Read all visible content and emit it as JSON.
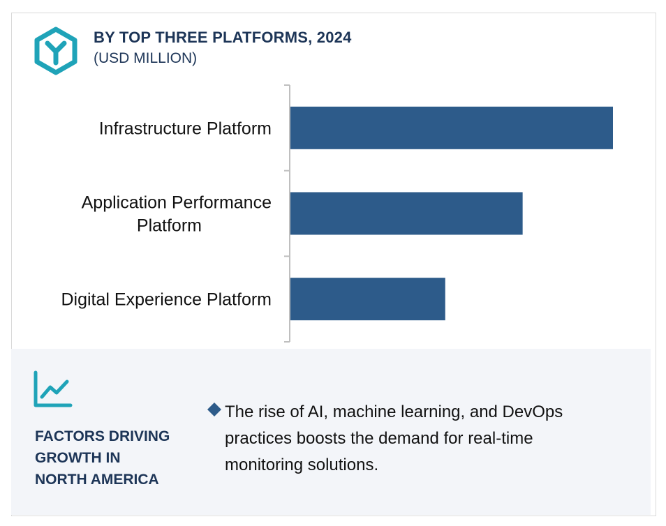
{
  "header": {
    "title": "BY TOP THREE PLATFORMS, 2024",
    "subtitle": "(USD MILLION)"
  },
  "colors": {
    "bar": "#2d5b8a",
    "accent_teal": "#1fa3b8",
    "heading_navy": "#1d3557",
    "panel_bg": "#f3f5f9"
  },
  "icons": {
    "logo": "hexagon-y-logo-icon",
    "trend": "line-chart-icon",
    "bullet": "diamond-bullet-icon"
  },
  "chart_data": {
    "type": "bar",
    "orientation": "horizontal",
    "title": "BY TOP THREE PLATFORMS, 2024",
    "subtitle": "(USD MILLION)",
    "categories": [
      [
        "Infrastructure Platform"
      ],
      [
        "Application Performance",
        "Platform"
      ],
      [
        "Digital Experience Platform"
      ]
    ],
    "values": [
      100,
      72,
      48
    ],
    "xlim": [
      0,
      100
    ],
    "grid": false,
    "legend": "none"
  },
  "factors": {
    "title_lines": [
      "FACTORS DRIVING",
      "GROWTH IN",
      "NORTH AMERICA"
    ],
    "bullets": [
      "The rise of AI, machine learning, and DevOps practices boosts the demand for real-time monitoring solutions."
    ]
  }
}
